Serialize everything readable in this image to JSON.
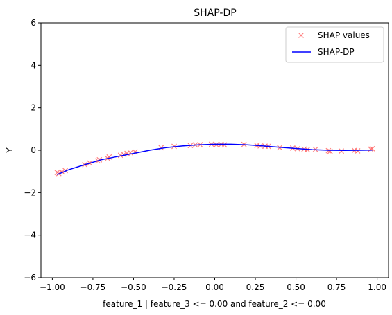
{
  "chart_data": {
    "type": "scatter",
    "title": "SHAP-DP",
    "xlabel": "feature_1 | feature_3 <= 0.00 and feature_2 <= 0.00",
    "ylabel": "Y",
    "xlim": [
      -1.07,
      1.07
    ],
    "ylim": [
      -6,
      6
    ],
    "xticks": [
      -1.0,
      -0.75,
      -0.5,
      -0.25,
      0.0,
      0.25,
      0.5,
      0.75,
      1.0
    ],
    "xtick_labels": [
      "−1.00",
      "−0.75",
      "−0.50",
      "−0.25",
      "0.00",
      "0.25",
      "0.50",
      "0.75",
      "1.00"
    ],
    "yticks": [
      -6,
      -4,
      -2,
      0,
      2,
      4,
      6
    ],
    "ytick_labels": [
      "−6",
      "−4",
      "−2",
      "0",
      "2",
      "4",
      "6"
    ],
    "grid": false,
    "legend_position": "top-right",
    "series": [
      {
        "name": "SHAP values",
        "marker": "x",
        "color": "#ff6b6b",
        "x": [
          -0.97,
          -0.96,
          -0.94,
          -0.92,
          -0.8,
          -0.77,
          -0.72,
          -0.71,
          -0.66,
          -0.65,
          -0.58,
          -0.56,
          -0.54,
          -0.52,
          -0.49,
          -0.33,
          -0.25,
          -0.15,
          -0.12,
          -0.09,
          -0.02,
          0.01,
          0.04,
          0.06,
          0.18,
          0.26,
          0.28,
          0.31,
          0.33,
          0.4,
          0.48,
          0.51,
          0.55,
          0.57,
          0.62,
          0.7,
          0.71,
          0.78,
          0.86,
          0.88,
          0.96,
          0.97
        ],
        "y": [
          -1.05,
          -1.1,
          -1.02,
          -0.96,
          -0.68,
          -0.6,
          -0.5,
          -0.45,
          -0.38,
          -0.32,
          -0.24,
          -0.2,
          -0.15,
          -0.12,
          -0.08,
          0.12,
          0.18,
          0.22,
          0.25,
          0.26,
          0.28,
          0.26,
          0.27,
          0.25,
          0.27,
          0.22,
          0.2,
          0.19,
          0.18,
          0.12,
          0.1,
          0.07,
          0.05,
          0.03,
          0.04,
          -0.02,
          -0.05,
          -0.04,
          -0.01,
          -0.03,
          0.05,
          0.07
        ]
      },
      {
        "name": "SHAP-DP",
        "marker": "line",
        "color": "#0000ff",
        "x": [
          -0.97,
          -0.9,
          -0.8,
          -0.7,
          -0.6,
          -0.5,
          -0.4,
          -0.3,
          -0.2,
          -0.1,
          0.0,
          0.1,
          0.2,
          0.3,
          0.4,
          0.5,
          0.6,
          0.7,
          0.8,
          0.9,
          0.97
        ],
        "y": [
          -1.15,
          -0.92,
          -0.68,
          -0.45,
          -0.3,
          -0.15,
          0.0,
          0.12,
          0.2,
          0.25,
          0.28,
          0.28,
          0.25,
          0.2,
          0.14,
          0.08,
          0.03,
          0.0,
          -0.01,
          0.0,
          0.01
        ]
      }
    ]
  }
}
